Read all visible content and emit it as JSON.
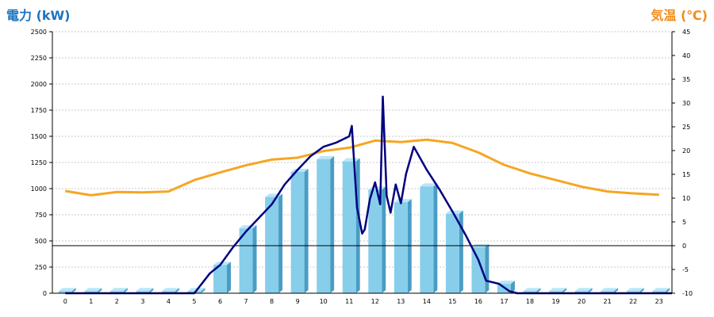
{
  "chart_data": {
    "type": "bar",
    "left_axis_title": "電力 (kW)",
    "right_axis_title": "気温 (℃)",
    "categories": [
      "0",
      "1",
      "2",
      "3",
      "4",
      "5",
      "6",
      "7",
      "8",
      "9",
      "10",
      "11",
      "12",
      "13",
      "14",
      "15",
      "16",
      "17",
      "18",
      "19",
      "20",
      "21",
      "22",
      "23"
    ],
    "left_axis": {
      "min": 0,
      "max": 2500,
      "ticks": [
        0,
        250,
        500,
        750,
        1000,
        1250,
        1500,
        1750,
        2000,
        2250,
        2500
      ]
    },
    "right_axis": {
      "min": -10,
      "max": 45,
      "ticks": [
        -10,
        -5,
        0,
        5,
        10,
        15,
        20,
        25,
        30,
        35,
        40,
        45
      ]
    },
    "grid": true,
    "series": [
      {
        "kind": "bar3d",
        "axis": "left",
        "color": "#87ceeb",
        "values": [
          20,
          20,
          20,
          20,
          20,
          20,
          270,
          620,
          920,
          1160,
          1280,
          1260,
          990,
          870,
          1020,
          760,
          440,
          90,
          20,
          20,
          20,
          20,
          20,
          20
        ]
      },
      {
        "kind": "line",
        "axis": "left",
        "color": "#000080",
        "points": [
          [
            0,
            0
          ],
          [
            5,
            0
          ],
          [
            5.6,
            190
          ],
          [
            6,
            270
          ],
          [
            6.5,
            440
          ],
          [
            7,
            590
          ],
          [
            7.5,
            720
          ],
          [
            8,
            850
          ],
          [
            8.5,
            1040
          ],
          [
            9,
            1180
          ],
          [
            9.5,
            1310
          ],
          [
            10,
            1400
          ],
          [
            10.5,
            1440
          ],
          [
            11,
            1500
          ],
          [
            11.1,
            1600
          ],
          [
            11.3,
            820
          ],
          [
            11.5,
            570
          ],
          [
            11.6,
            610
          ],
          [
            11.8,
            900
          ],
          [
            12,
            1060
          ],
          [
            12.2,
            850
          ],
          [
            12.3,
            1880
          ],
          [
            12.45,
            930
          ],
          [
            12.6,
            770
          ],
          [
            12.8,
            1040
          ],
          [
            13,
            860
          ],
          [
            13.2,
            1140
          ],
          [
            13.5,
            1400
          ],
          [
            14,
            1180
          ],
          [
            14.5,
            990
          ],
          [
            15,
            780
          ],
          [
            15.5,
            560
          ],
          [
            16,
            320
          ],
          [
            16.3,
            120
          ],
          [
            16.8,
            90
          ],
          [
            17.2,
            20
          ],
          [
            17.5,
            0
          ],
          [
            23.5,
            0
          ]
        ]
      },
      {
        "kind": "line",
        "axis": "right",
        "color": "#f5a623",
        "values": [
          11.5,
          10.6,
          11.3,
          11.2,
          11.4,
          13.8,
          15.4,
          16.9,
          18.1,
          18.5,
          19.9,
          20.6,
          22.1,
          21.8,
          22.3,
          21.6,
          19.6,
          17.0,
          15.2,
          13.8,
          12.4,
          11.4,
          11.0,
          10.7
        ]
      }
    ]
  },
  "colors": {
    "left_title": "#1e73be",
    "right_title": "#f28c1b",
    "grid": "#c8c8c8",
    "zero_line": "#000000"
  }
}
